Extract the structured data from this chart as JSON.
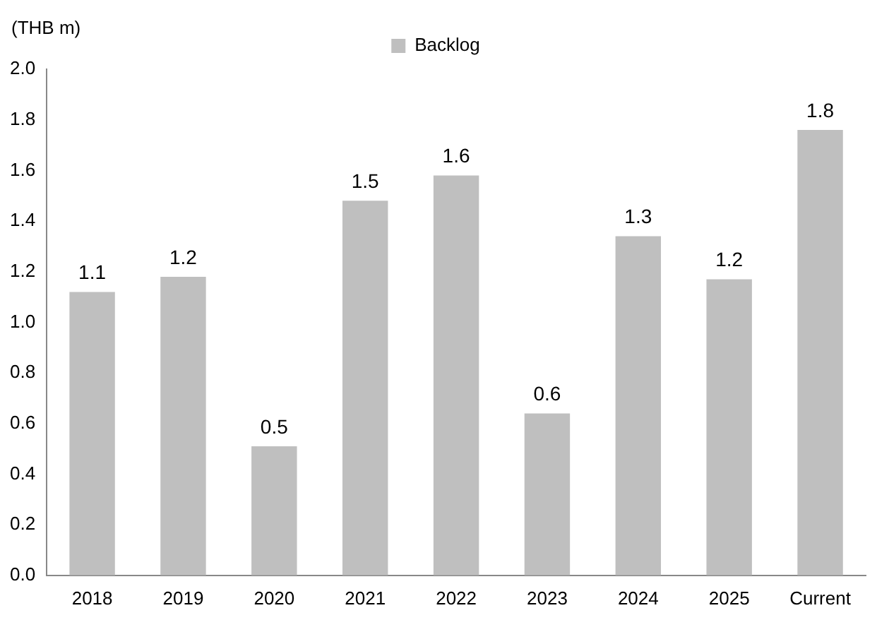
{
  "chart_data": {
    "type": "bar",
    "ylabel": "(THB m)",
    "categories": [
      "2018",
      "2019",
      "2020",
      "2021",
      "2022",
      "2023",
      "2024",
      "2025",
      "Current"
    ],
    "series": [
      {
        "name": "Backlog",
        "color": "#bfbfbf",
        "values": [
          1.12,
          1.18,
          0.51,
          1.48,
          1.58,
          0.64,
          1.34,
          1.17,
          1.76
        ],
        "value_labels": [
          "1.1",
          "1.2",
          "0.5",
          "1.5",
          "1.6",
          "0.6",
          "1.3",
          "1.2",
          "1.8"
        ]
      }
    ],
    "ylim": [
      0,
      2
    ],
    "yticks": [
      {
        "value": 0,
        "label": "0.0"
      },
      {
        "value": 0.2,
        "label": "0.2"
      },
      {
        "value": 0.4,
        "label": "0.4"
      },
      {
        "value": 0.6,
        "label": "0.6"
      },
      {
        "value": 0.8,
        "label": "0.8"
      },
      {
        "value": 1,
        "label": "1.0"
      },
      {
        "value": 1.2,
        "label": "1.2"
      },
      {
        "value": 1.4,
        "label": "1.4"
      },
      {
        "value": 1.6,
        "label": "1.6"
      },
      {
        "value": 1.8,
        "label": "1.8"
      },
      {
        "value": 2,
        "label": "2.0"
      }
    ],
    "grid": false,
    "legend": "top"
  }
}
